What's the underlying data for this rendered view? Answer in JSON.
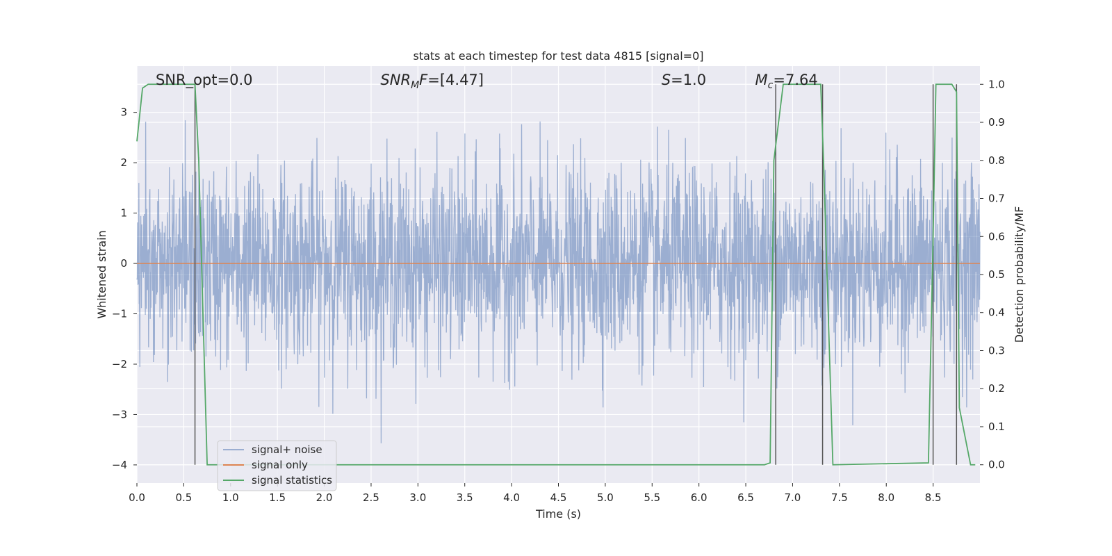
{
  "chart_data": {
    "type": "line",
    "title": "stats at each timestep for test data 4815 [signal=0]",
    "xlabel": "Time (s)",
    "ylabel_left": "Whitened strain",
    "ylabel_right": "Detection probability/MF",
    "xlim": [
      0.0,
      9.0
    ],
    "ylim_left": [
      -4.36,
      3.92
    ],
    "ylim_right": [
      -0.048,
      1.048
    ],
    "x_ticks": [
      0.0,
      0.5,
      1.0,
      1.5,
      2.0,
      2.5,
      3.0,
      3.5,
      4.0,
      4.5,
      5.0,
      5.5,
      6.0,
      6.5,
      7.0,
      7.5,
      8.0,
      8.5
    ],
    "x_tick_labels": [
      "0.0",
      "0.5",
      "1.0",
      "1.5",
      "2.0",
      "2.5",
      "3.0",
      "3.5",
      "4.0",
      "4.5",
      "5.0",
      "5.5",
      "6.0",
      "6.5",
      "7.0",
      "7.5",
      "8.0",
      "8.5"
    ],
    "y_left_ticks": [
      3,
      2,
      1,
      0,
      -1,
      -2,
      -3,
      -4
    ],
    "y_left_tick_labels": [
      "3",
      "2",
      "1",
      "0",
      "−1",
      "−2",
      "−3",
      "−4"
    ],
    "y_right_ticks": [
      1.0,
      0.9,
      0.8,
      0.7,
      0.6,
      0.5,
      0.4,
      0.3,
      0.2,
      0.1,
      0.0
    ],
    "y_right_tick_labels": [
      "1.0",
      "0.9",
      "0.8",
      "0.7",
      "0.6",
      "0.5",
      "0.4",
      "0.3",
      "0.2",
      "0.1",
      "0.0"
    ],
    "grid": true,
    "legend_position": "lower-left",
    "annotations": [
      {
        "text": "SNR_opt=0.0",
        "x": 0.2
      },
      {
        "text": "SNR_MF=[4.47]",
        "x": 2.6
      },
      {
        "text": "S=1.0",
        "x": 5.6
      },
      {
        "text": "M_c=7.64",
        "x": 6.6
      }
    ],
    "series": [
      {
        "name": "signal+ noise",
        "color": "#4c72b0",
        "opacity": 0.5,
        "axis": "left",
        "style": "noise",
        "summary": {
          "typical_min": -2.0,
          "typical_max": 2.0,
          "peak_max": 3.55,
          "peak_min": -3.6
        }
      },
      {
        "name": "signal only",
        "color": "#dd8452",
        "axis": "left",
        "x": [
          0.0,
          9.0
        ],
        "y": [
          0.0,
          0.0
        ]
      },
      {
        "name": "signal statistics",
        "color": "#55a868",
        "axis": "right",
        "x": [
          0.0,
          0.06,
          0.12,
          0.6,
          0.62,
          0.66,
          0.75,
          6.7,
          6.76,
          6.8,
          6.9,
          7.3,
          7.33,
          7.38,
          7.43,
          8.45,
          8.5,
          8.53,
          8.57,
          8.7,
          8.75,
          8.78,
          8.9,
          8.95
        ],
        "y": [
          0.85,
          0.99,
          1.0,
          1.0,
          1.0,
          0.8,
          0.0,
          0.0,
          0.005,
          0.8,
          1.0,
          1.0,
          0.8,
          0.4,
          0.0,
          0.005,
          0.6,
          1.0,
          1.0,
          1.0,
          0.98,
          0.15,
          0.0,
          0.0
        ]
      }
    ],
    "vertical_markers": {
      "color": "#555555",
      "x": [
        0.62,
        6.82,
        7.32,
        8.5,
        8.75
      ],
      "y_range": [
        0.0,
        1.0
      ]
    }
  }
}
